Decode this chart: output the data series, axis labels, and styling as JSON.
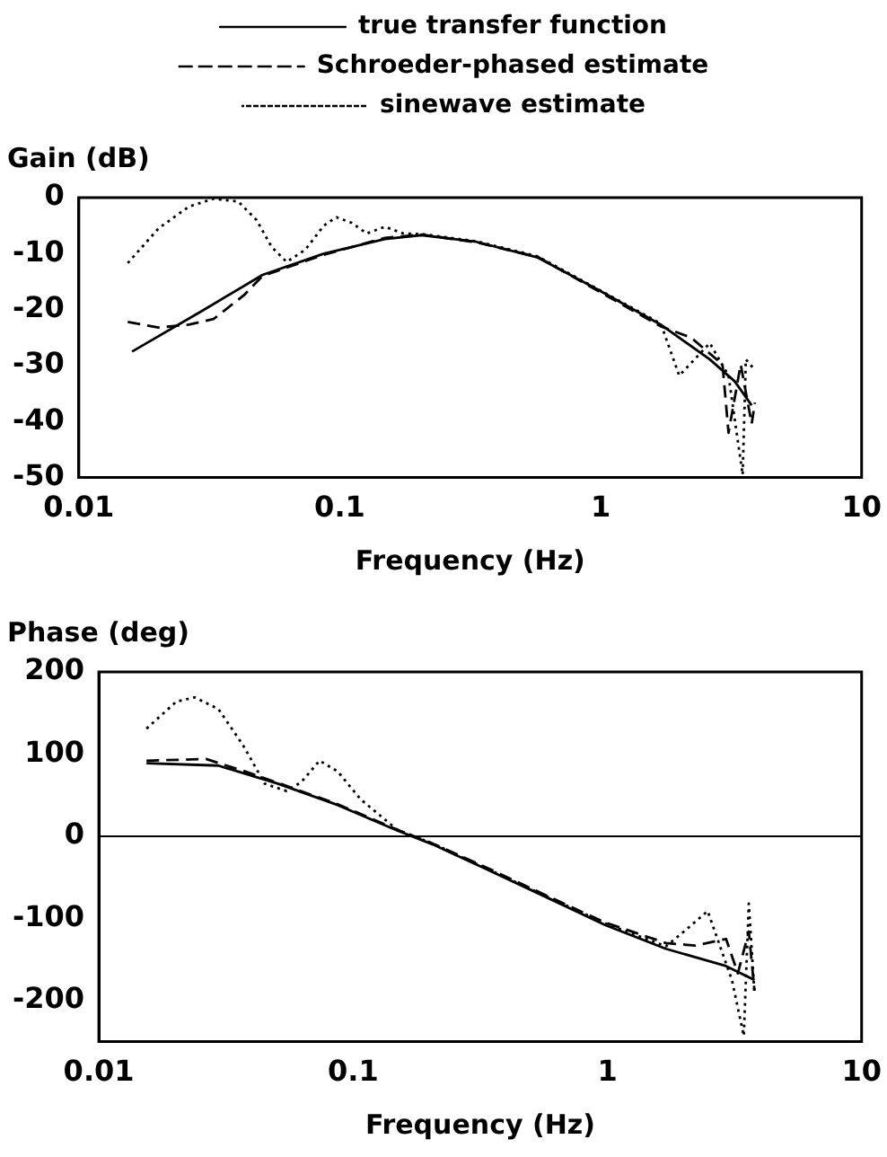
{
  "chart_data": [
    {
      "type": "line",
      "ylabel": "Gain (dB)",
      "xlabel": "Frequency (Hz)",
      "log": "x",
      "xlim": [
        0.01,
        10
      ],
      "xticks": [
        0.01,
        0.1,
        1,
        10
      ],
      "ylim": [
        -50,
        0
      ],
      "yticks": [
        0,
        -10,
        -20,
        -30,
        -40,
        -50
      ],
      "legend": "top",
      "grid": false,
      "marker": "none",
      "series": [
        {
          "name": "true transfer function",
          "color": "#000000",
          "line_style": "solid",
          "x": [
            0.016,
            0.0295,
            0.0506,
            0.0869,
            0.149,
            0.206,
            0.334,
            0.574,
            0.98,
            1.7,
            2.62,
            3.26,
            3.79
          ],
          "values": [
            -27.5,
            -20.3,
            -13.8,
            -10,
            -7.4,
            -6.7,
            -7.9,
            -10.7,
            -16.5,
            -22.7,
            -28.9,
            -32.8,
            -37.1
          ]
        },
        {
          "name": "Schroeder-phased estimate",
          "color": "#000000",
          "line_style": "dashed",
          "x": [
            0.0154,
            0.0202,
            0.0264,
            0.0328,
            0.043,
            0.0506,
            0.0869,
            0.149,
            0.206,
            0.334,
            0.574,
            0.98,
            1.7,
            2.22,
            2.93,
            3.09,
            3.44,
            3.79,
            3.9
          ],
          "values": [
            -22.2,
            -23.2,
            -22.7,
            -21.7,
            -17.4,
            -14,
            -10.2,
            -7.2,
            -6.6,
            -8,
            -10.6,
            -16.7,
            -23,
            -25,
            -29.8,
            -42,
            -29.8,
            -40.4,
            -36.6
          ]
        },
        {
          "name": "sinewave estimate",
          "color": "#000000",
          "line_style": "dotted",
          "x": [
            0.0154,
            0.0202,
            0.0264,
            0.0328,
            0.0408,
            0.048,
            0.0548,
            0.0626,
            0.0738,
            0.0869,
            0.097,
            0.111,
            0.127,
            0.149,
            0.175,
            0.206,
            0.334,
            0.574,
            0.98,
            1.7,
            2.0,
            2.62,
            3.09,
            3.5,
            3.6,
            3.9
          ],
          "values": [
            -11.7,
            -5.5,
            -1.6,
            -0.2,
            -0.7,
            -4,
            -8.8,
            -11.5,
            -9.3,
            -5,
            -3.5,
            -4.5,
            -6.4,
            -5.2,
            -6.4,
            -6.5,
            -7.8,
            -10.5,
            -16.4,
            -22.5,
            -31.8,
            -26,
            -31.8,
            -49.5,
            -28.9,
            -30.8
          ]
        }
      ]
    },
    {
      "type": "line",
      "ylabel": "Phase (deg)",
      "xlabel": "Frequency (Hz)",
      "log": "x",
      "xlim": [
        0.01,
        10
      ],
      "xticks": [
        0.01,
        0.1,
        1,
        10
      ],
      "ylim": [
        -250,
        200
      ],
      "yticks": [
        200,
        100,
        0,
        -100,
        -200
      ],
      "grid": false,
      "marker": "none",
      "ref_lines": [
        {
          "axis": "y",
          "value": 0,
          "color": "#000000"
        }
      ],
      "series": [
        {
          "color": "#000000",
          "line_style": "solid",
          "x": [
            0.0154,
            0.0295,
            0.0506,
            0.0869,
            0.149,
            0.206,
            0.334,
            0.574,
            0.98,
            1.7,
            2.93,
            3.79
          ],
          "values": [
            89,
            86,
            64,
            38,
            7,
            -10,
            -40,
            -74,
            -108,
            -137,
            -158,
            -175
          ]
        },
        {
          "color": "#000000",
          "line_style": "dashed",
          "x": [
            0.0154,
            0.0264,
            0.0375,
            0.0506,
            0.0869,
            0.149,
            0.206,
            0.334,
            0.574,
            0.98,
            1.7,
            2.22,
            2.93,
            3.26,
            3.6,
            3.79
          ],
          "values": [
            92,
            94,
            79,
            65,
            39,
            8,
            -9,
            -38,
            -72,
            -105,
            -130,
            -133,
            -125,
            -167,
            -116,
            -188
          ]
        },
        {
          "color": "#000000",
          "line_style": "dotted",
          "x": [
            0.0154,
            0.0202,
            0.0238,
            0.0295,
            0.0369,
            0.0449,
            0.0548,
            0.0626,
            0.0738,
            0.0869,
            0.107,
            0.149,
            0.206,
            0.334,
            0.574,
            0.98,
            1.7,
            2.0,
            2.48,
            3.09,
            3.44,
            3.6,
            3.79
          ],
          "values": [
            131,
            164,
            169,
            155,
            111,
            64,
            55,
            66,
            92,
            79,
            45,
            8,
            -9,
            -39,
            -73,
            -106,
            -134,
            -116,
            -91,
            -175,
            -243,
            -82,
            -192
          ]
        }
      ]
    }
  ]
}
